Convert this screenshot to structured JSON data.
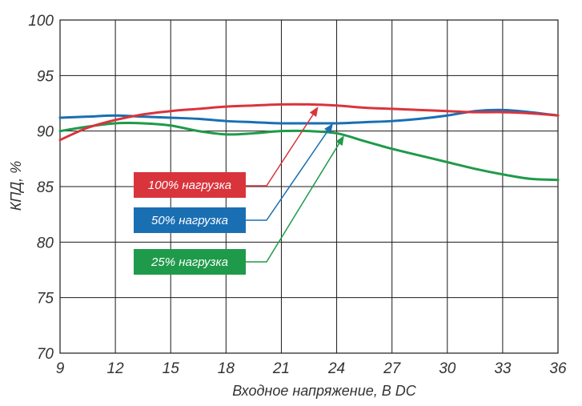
{
  "chart_data": {
    "type": "line",
    "xlabel": "Входное напряжение, В DC",
    "ylabel": "КПД, %",
    "xlim": [
      9,
      36
    ],
    "ylim": [
      70,
      100
    ],
    "x_ticks": [
      9,
      12,
      15,
      18,
      21,
      24,
      27,
      30,
      33,
      36
    ],
    "y_ticks": [
      70,
      75,
      80,
      85,
      90,
      95,
      100
    ],
    "grid": true,
    "legend_position": "callout labels with arrows, center-left",
    "series": [
      {
        "name": "100% нагрузка",
        "color": "#d9343c",
        "x": [
          9,
          10.5,
          12,
          13.5,
          15,
          16.5,
          18,
          19.5,
          21,
          22.5,
          24,
          25.5,
          27,
          28.5,
          30,
          31.5,
          33,
          34.5,
          36
        ],
        "y": [
          89.2,
          90.3,
          91.0,
          91.5,
          91.8,
          92.0,
          92.2,
          92.3,
          92.4,
          92.4,
          92.3,
          92.1,
          92.0,
          91.9,
          91.8,
          91.7,
          91.7,
          91.6,
          91.4
        ]
      },
      {
        "name": "50% нагрузка",
        "color": "#1a6fb3",
        "x": [
          9,
          10.5,
          12,
          13.5,
          15,
          16.5,
          18,
          19.5,
          21,
          22.5,
          24,
          25.5,
          27,
          28.5,
          30,
          31.5,
          33,
          34.5,
          36
        ],
        "y": [
          91.2,
          91.3,
          91.4,
          91.3,
          91.2,
          91.1,
          90.9,
          90.8,
          90.7,
          90.7,
          90.7,
          90.8,
          90.9,
          91.1,
          91.4,
          91.8,
          91.9,
          91.7,
          91.4
        ]
      },
      {
        "name": "25% нагрузка",
        "color": "#1f9a4a",
        "x": [
          9,
          10.5,
          12,
          13.5,
          15,
          16.5,
          18,
          19.5,
          21,
          22.5,
          24,
          25.5,
          27,
          28.5,
          30,
          31.5,
          33,
          34.5,
          36
        ],
        "y": [
          90.0,
          90.4,
          90.7,
          90.7,
          90.5,
          90.0,
          89.7,
          89.8,
          90.0,
          90.0,
          89.8,
          89.1,
          88.4,
          87.8,
          87.2,
          86.6,
          86.1,
          85.7,
          85.6
        ]
      }
    ],
    "annotations": [
      {
        "text": "100% нагрузка",
        "series": 0,
        "arrow_to": [
          23,
          92.2
        ]
      },
      {
        "text": "50% нагрузка",
        "series": 1,
        "arrow_to": [
          23.8,
          90.7
        ]
      },
      {
        "text": "25% нагрузка",
        "series": 2,
        "arrow_to": [
          24.4,
          89.6
        ]
      }
    ]
  }
}
